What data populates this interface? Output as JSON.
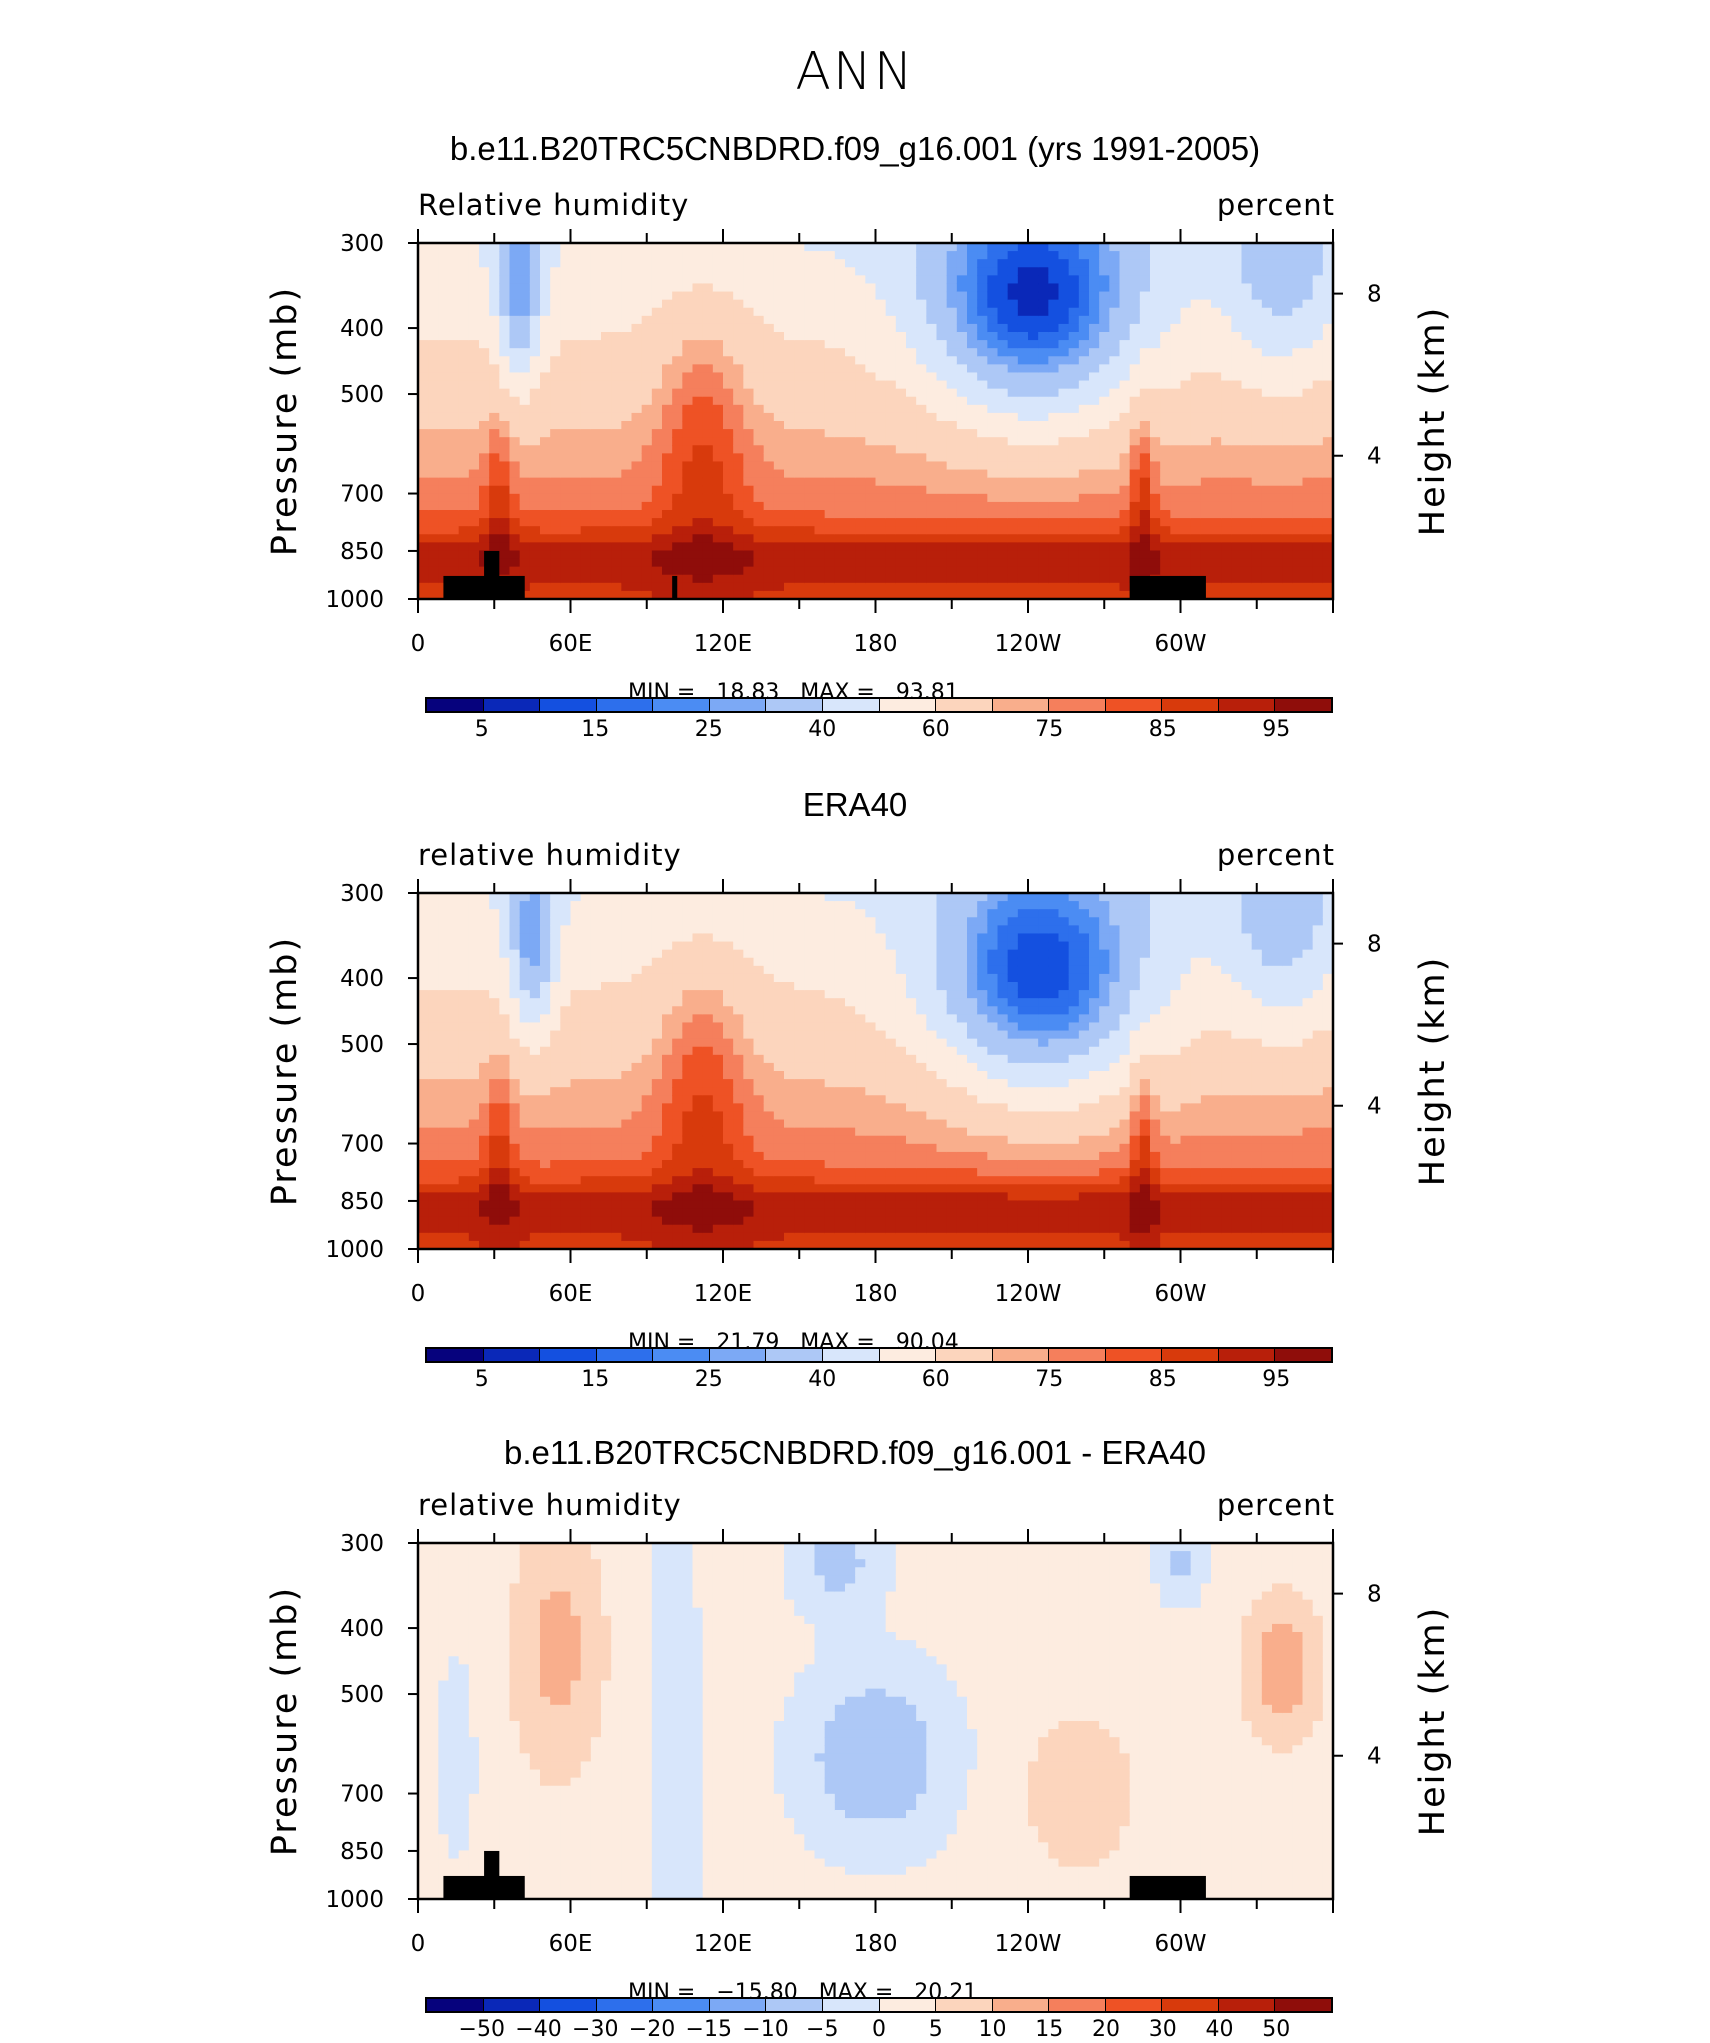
{
  "main_title": "ANN",
  "palettes": {
    "abs": [
      "#06027d",
      "#0a28b8",
      "#1450e0",
      "#2d6fec",
      "#4b8cf3",
      "#7ca9f5",
      "#adc8f6",
      "#d8e6fb",
      "#fdece0",
      "#fcd5bd",
      "#f9ae8c",
      "#f57f5c",
      "#ee5225",
      "#d83a0c",
      "#b81f0a",
      "#8f0d0a"
    ],
    "diff": [
      "#06027d",
      "#0a28b8",
      "#1450e0",
      "#2d6fec",
      "#4b8cf3",
      "#7ca9f5",
      "#adc8f6",
      "#d8e6fb",
      "#fdece0",
      "#fcd5bd",
      "#f9ae8c",
      "#f57f5c",
      "#ee5225",
      "#d83a0c",
      "#b81f0a",
      "#8f0d0a"
    ]
  },
  "panels": [
    {
      "title": "b.e11.B20TRC5CNBDRD.f09_g16.001 (yrs 1991-2005)",
      "variable": "Relative humidity",
      "units": "percent",
      "min_label": "MIN =",
      "min_value": "18.83",
      "max_label": "MAX =",
      "max_value": "93.81",
      "y_axis_label": "Pressure (mb)",
      "y2_axis_label": "Height (km)",
      "y_ticks": [
        "300",
        "400",
        "500",
        "700",
        "850",
        "1000"
      ],
      "y2_ticks": [
        "8",
        "4"
      ],
      "x_ticks": [
        "0",
        "60E",
        "120E",
        "180",
        "120W",
        "60W"
      ],
      "colorbar_labels": [
        "5",
        "15",
        "25",
        "40",
        "60",
        "75",
        "85",
        "95"
      ],
      "palette": "abs"
    },
    {
      "title": "ERA40",
      "variable": "relative humidity",
      "units": "percent",
      "min_label": "MIN =",
      "min_value": "21.79",
      "max_label": "MAX =",
      "max_value": "90.04",
      "y_axis_label": "Pressure (mb)",
      "y2_axis_label": "Height (km)",
      "y_ticks": [
        "300",
        "400",
        "500",
        "700",
        "850",
        "1000"
      ],
      "y2_ticks": [
        "8",
        "4"
      ],
      "x_ticks": [
        "0",
        "60E",
        "120E",
        "180",
        "120W",
        "60W"
      ],
      "colorbar_labels": [
        "5",
        "15",
        "25",
        "40",
        "60",
        "75",
        "85",
        "95"
      ],
      "palette": "abs"
    },
    {
      "title": "b.e11.B20TRC5CNBDRD.f09_g16.001 - ERA40",
      "variable": "relative humidity",
      "units": "percent",
      "min_label": "MIN =",
      "min_value": "−15.80",
      "max_label": "MAX =",
      "max_value": "20.21",
      "y_axis_label": "Pressure (mb)",
      "y2_axis_label": "Height (km)",
      "y_ticks": [
        "300",
        "400",
        "500",
        "700",
        "850",
        "1000"
      ],
      "y2_ticks": [
        "8",
        "4"
      ],
      "x_ticks": [
        "0",
        "60E",
        "120E",
        "180",
        "120W",
        "60W"
      ],
      "colorbar_labels": [
        "−50",
        "−40",
        "−30",
        "−20",
        "−15",
        "−10",
        "−5",
        "0",
        "5",
        "10",
        "15",
        "20",
        "30",
        "40",
        "50"
      ],
      "palette": "diff"
    }
  ],
  "chart_data": [
    {
      "type": "heatmap",
      "title": "b.e11.B20TRC5CNBDRD.f09_g16.001 (yrs 1991-2005)",
      "xlabel": "",
      "ylabel": "Pressure (mb)",
      "y2label": "Height (km)",
      "x_range": [
        0,
        360
      ],
      "y_range": [
        1000,
        300
      ],
      "contour_levels": [
        5,
        10,
        15,
        20,
        25,
        30,
        40,
        50,
        60,
        70,
        75,
        80,
        85,
        90,
        95
      ],
      "features": [
        {
          "name": "low-humidity core",
          "lon": 240,
          "pressure": 400,
          "value": 18.83
        },
        {
          "name": "boundary-layer maximum",
          "lon": 100,
          "pressure": 925,
          "value": 90
        },
        {
          "name": "boundary-layer maximum",
          "lon": 280,
          "pressure": 925,
          "value": 90
        },
        {
          "name": "dry tongue",
          "lon": 38,
          "pressure": 400,
          "value": 30
        }
      ],
      "min": 18.83,
      "max": 93.81
    },
    {
      "type": "heatmap",
      "title": "ERA40",
      "ylabel": "Pressure (mb)",
      "y2label": "Height (km)",
      "x_range": [
        0,
        360
      ],
      "y_range": [
        1000,
        300
      ],
      "contour_levels": [
        5,
        10,
        15,
        20,
        25,
        30,
        40,
        50,
        60,
        70,
        75,
        80,
        85,
        90,
        95
      ],
      "features": [
        {
          "name": "low-humidity core",
          "lon": 240,
          "pressure": 450,
          "value": 21.79
        },
        {
          "name": "dry tongue",
          "lon": 45,
          "pressure": 400,
          "value": 28
        }
      ],
      "min": 21.79,
      "max": 90.04
    },
    {
      "type": "heatmap",
      "title": "b.e11.B20TRC5CNBDRD.f09_g16.001 - ERA40",
      "ylabel": "Pressure (mb)",
      "y2label": "Height (km)",
      "x_range": [
        0,
        360
      ],
      "y_range": [
        1000,
        300
      ],
      "contour_levels": [
        -50,
        -40,
        -30,
        -20,
        -15,
        -10,
        -5,
        0,
        5,
        10,
        15,
        20,
        30,
        40,
        50
      ],
      "min": -15.8,
      "max": 20.21
    }
  ]
}
